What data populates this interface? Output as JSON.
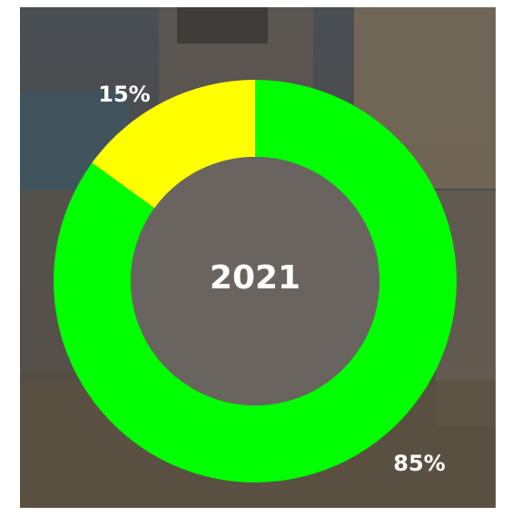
{
  "chart_data": {
    "type": "donut",
    "center_label": "2021",
    "values": [
      85,
      15
    ],
    "value_labels": [
      "85%",
      "15%"
    ],
    "colors": [
      "#00ff00",
      "#ffff00"
    ]
  }
}
